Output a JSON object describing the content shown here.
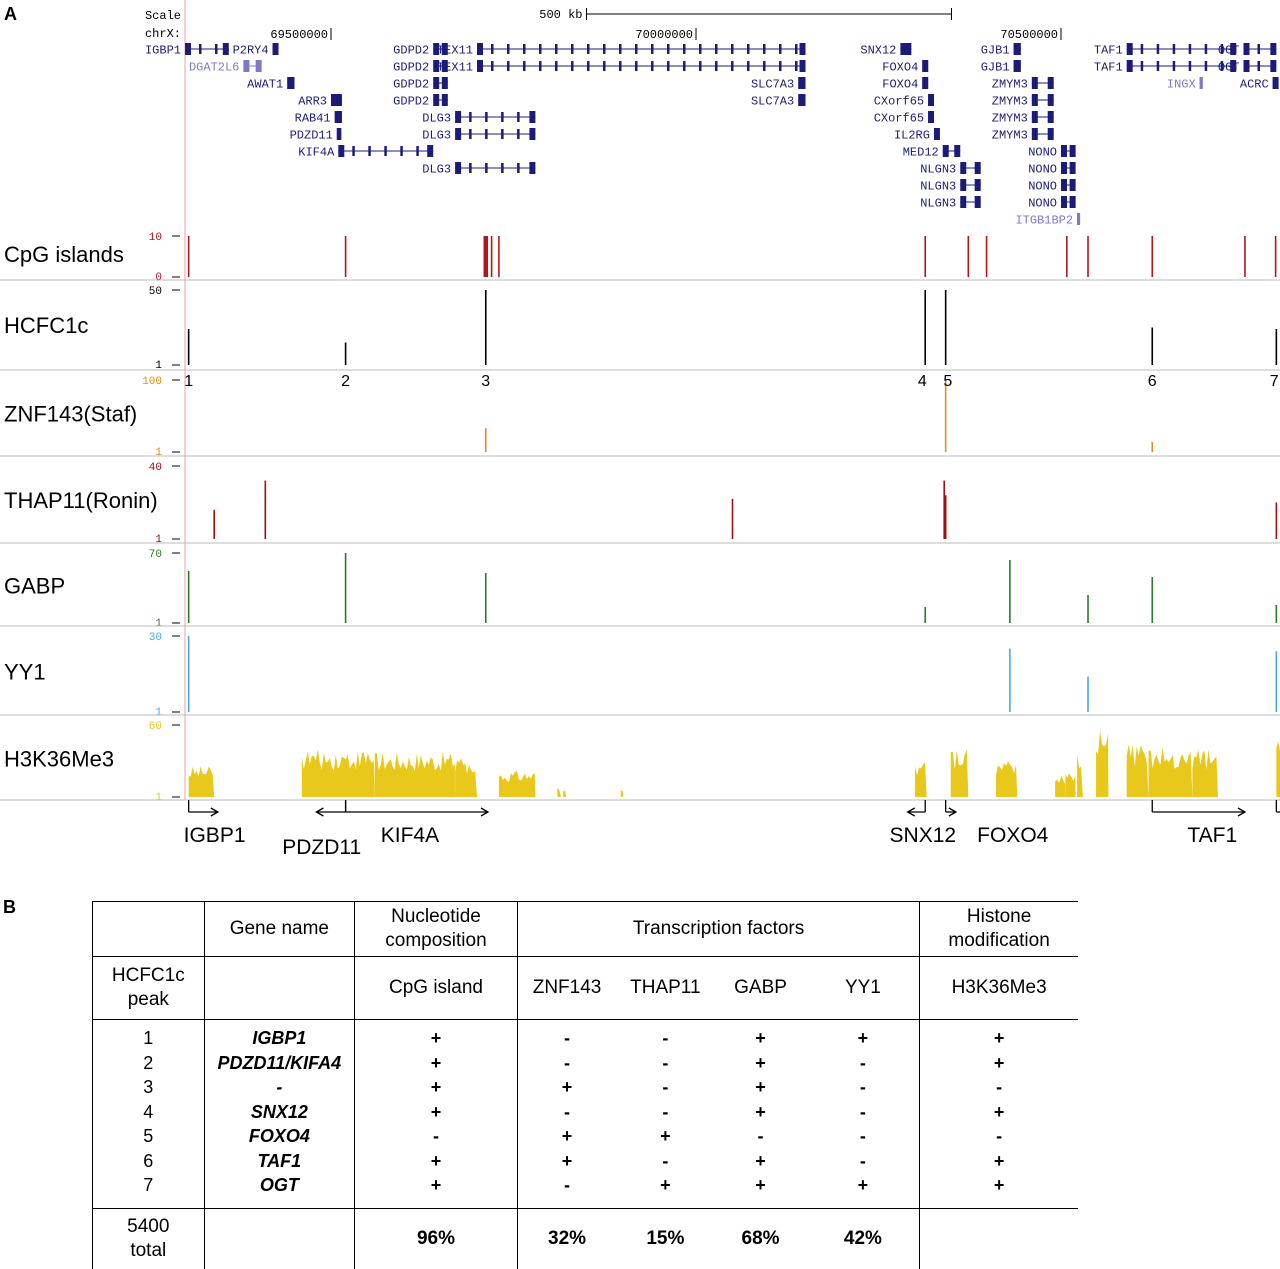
{
  "panel_a_label": "A",
  "panel_b_label": "B",
  "browser": {
    "scale_label": "Scale",
    "scale_value": "500 kb",
    "chrom_label": "chrX:",
    "coords": [
      {
        "value": 69500000,
        "text": "69500000"
      },
      {
        "value": 70000000,
        "text": "70000000"
      },
      {
        "value": 70500000,
        "text": "70500000"
      }
    ],
    "gene_colors": {
      "main": "#1c1c78",
      "light": "#7b7bc8"
    },
    "genes": [
      {
        "name": "IGBP1",
        "row": 0,
        "start": 69300000,
        "end": 69360000,
        "color": "main"
      },
      {
        "name": "P2RY4",
        "row": 0,
        "start": 69420000,
        "end": 69428000,
        "color": "main"
      },
      {
        "name": "GDPD2",
        "row": 0,
        "start": 69640000,
        "end": 69660000,
        "color": "main"
      },
      {
        "name": "TEX11",
        "row": 0,
        "start": 69700000,
        "end": 70150000,
        "color": "main"
      },
      {
        "name": "SNX12",
        "row": 0,
        "start": 70280000,
        "end": 70295000,
        "color": "main"
      },
      {
        "name": "GJB1",
        "row": 0,
        "start": 70435000,
        "end": 70445000,
        "color": "main"
      },
      {
        "name": "TAF1",
        "row": 0,
        "start": 70590000,
        "end": 70740000,
        "color": "main"
      },
      {
        "name": "OGT",
        "row": 0,
        "start": 70750000,
        "end": 70795000,
        "color": "main"
      },
      {
        "name": "DGAT2L6",
        "row": 1,
        "start": 69380000,
        "end": 69405000,
        "color": "light"
      },
      {
        "name": "GDPD2",
        "row": 1,
        "start": 69640000,
        "end": 69660000,
        "color": "main"
      },
      {
        "name": "TEX11",
        "row": 1,
        "start": 69700000,
        "end": 70150000,
        "color": "main"
      },
      {
        "name": "FOXO4",
        "row": 1,
        "start": 70310000,
        "end": 70318000,
        "color": "main"
      },
      {
        "name": "GJB1",
        "row": 1,
        "start": 70435000,
        "end": 70445000,
        "color": "main"
      },
      {
        "name": "TAF1",
        "row": 1,
        "start": 70590000,
        "end": 70740000,
        "color": "main"
      },
      {
        "name": "OGT",
        "row": 1,
        "start": 70750000,
        "end": 70795000,
        "color": "main"
      },
      {
        "name": "AWAT1",
        "row": 2,
        "start": 69440000,
        "end": 69450000,
        "color": "main"
      },
      {
        "name": "GDPD2",
        "row": 2,
        "start": 69640000,
        "end": 69660000,
        "color": "main"
      },
      {
        "name": "SLC7A3",
        "row": 2,
        "start": 70140000,
        "end": 70150000,
        "color": "main"
      },
      {
        "name": "FOXO4",
        "row": 2,
        "start": 70310000,
        "end": 70318000,
        "color": "main"
      },
      {
        "name": "ZMYM3",
        "row": 2,
        "start": 70460000,
        "end": 70490000,
        "color": "main"
      },
      {
        "name": "INGX",
        "row": 2,
        "start": 70690000,
        "end": 70692000,
        "color": "light"
      },
      {
        "name": "ACRC",
        "row": 2,
        "start": 70790000,
        "end": 70798000,
        "color": "main"
      },
      {
        "name": "ARR3",
        "row": 3,
        "start": 69500000,
        "end": 69515000,
        "color": "main"
      },
      {
        "name": "GDPD2",
        "row": 3,
        "start": 69640000,
        "end": 69660000,
        "color": "main"
      },
      {
        "name": "SLC7A3",
        "row": 3,
        "start": 70140000,
        "end": 70150000,
        "color": "main"
      },
      {
        "name": "CXorf65",
        "row": 3,
        "start": 70318000,
        "end": 70326000,
        "color": "main"
      },
      {
        "name": "ZMYM3",
        "row": 3,
        "start": 70460000,
        "end": 70490000,
        "color": "main"
      },
      {
        "name": "RAB41",
        "row": 4,
        "start": 69505000,
        "end": 69515000,
        "color": "main"
      },
      {
        "name": "DLG3",
        "row": 4,
        "start": 69670000,
        "end": 69780000,
        "color": "main"
      },
      {
        "name": "CXorf65",
        "row": 4,
        "start": 70318000,
        "end": 70326000,
        "color": "main"
      },
      {
        "name": "ZMYM3",
        "row": 4,
        "start": 70460000,
        "end": 70490000,
        "color": "main"
      },
      {
        "name": "PDZD11",
        "row": 5,
        "start": 69508000,
        "end": 69514000,
        "color": "main"
      },
      {
        "name": "DLG3",
        "row": 5,
        "start": 69670000,
        "end": 69780000,
        "color": "main"
      },
      {
        "name": "IL2RG",
        "row": 5,
        "start": 70326000,
        "end": 70334000,
        "color": "main"
      },
      {
        "name": "ZMYM3",
        "row": 5,
        "start": 70460000,
        "end": 70490000,
        "color": "main"
      },
      {
        "name": "KIF4A",
        "row": 6,
        "start": 69510000,
        "end": 69640000,
        "color": "main"
      },
      {
        "name": "MED12",
        "row": 6,
        "start": 70338000,
        "end": 70362000,
        "color": "main"
      },
      {
        "name": "NONO",
        "row": 6,
        "start": 70500000,
        "end": 70520000,
        "color": "main"
      },
      {
        "name": "DLG3",
        "row": 7,
        "start": 69670000,
        "end": 69780000,
        "color": "main"
      },
      {
        "name": "NLGN3",
        "row": 7,
        "start": 70362000,
        "end": 70390000,
        "color": "main"
      },
      {
        "name": "NONO",
        "row": 7,
        "start": 70500000,
        "end": 70520000,
        "color": "main"
      },
      {
        "name": "NLGN3",
        "row": 8,
        "start": 70362000,
        "end": 70390000,
        "color": "main"
      },
      {
        "name": "NONO",
        "row": 8,
        "start": 70500000,
        "end": 70520000,
        "color": "main"
      },
      {
        "name": "NLGN3",
        "row": 9,
        "start": 70362000,
        "end": 70390000,
        "color": "main"
      },
      {
        "name": "NONO",
        "row": 9,
        "start": 70500000,
        "end": 70520000,
        "color": "main"
      },
      {
        "name": "ITGB1BP2",
        "row": 10,
        "start": 70522000,
        "end": 70526000,
        "color": "light"
      }
    ]
  },
  "chart_data": {
    "type": "bar",
    "x_range": [
      69300000,
      70800000
    ],
    "tracks": [
      {
        "name": "CpG islands",
        "color": "#b01818",
        "ymax_label": "10",
        "ymin_label": "0",
        "ymax": 10,
        "peaks": [
          [
            69305000,
            10
          ],
          [
            69520000,
            10
          ],
          [
            69710000,
            10
          ],
          [
            69712000,
            10
          ],
          [
            69714000,
            10
          ],
          [
            69720000,
            10
          ],
          [
            69730000,
            10
          ],
          [
            70314000,
            10
          ],
          [
            70373000,
            10
          ],
          [
            70398000,
            10
          ],
          [
            70508000,
            10
          ],
          [
            70537000,
            10
          ],
          [
            70625000,
            10
          ],
          [
            70752000,
            10
          ],
          [
            70794000,
            10
          ],
          [
            70840000,
            10
          ]
        ]
      },
      {
        "name": "HCFC1c",
        "color": "#000000",
        "ymax_label": "50",
        "ymin_label": "1",
        "ymax": 50,
        "peaks": [
          [
            69305000,
            24
          ],
          [
            69520000,
            15
          ],
          [
            69712000,
            50
          ],
          [
            70314000,
            50
          ],
          [
            70342000,
            50
          ],
          [
            70625000,
            25
          ],
          [
            70795000,
            24
          ]
        ]
      },
      {
        "name": "ZNF143(Staf)",
        "color": "#d9901c",
        "ymax_label": "100",
        "ymin_label": "1",
        "ymax": 100,
        "peaks": [
          [
            69712000,
            33
          ],
          [
            70342000,
            100
          ],
          [
            70625000,
            14
          ]
        ]
      },
      {
        "name": "THAP11(Ronin)",
        "color": "#a01010",
        "ymax_label": "40",
        "ymin_label": "1",
        "ymax": 40,
        "peaks": [
          [
            69340000,
            16
          ],
          [
            69410000,
            32
          ],
          [
            70050000,
            22
          ],
          [
            70340000,
            32
          ],
          [
            70342000,
            24
          ],
          [
            70795000,
            20
          ],
          [
            70830000,
            18
          ],
          [
            70835000,
            24
          ]
        ]
      },
      {
        "name": "GABP",
        "color": "#2a7a2a",
        "ymax_label": "70",
        "ymin_label": "1",
        "ymax": 70,
        "peaks": [
          [
            69305000,
            52
          ],
          [
            69520000,
            70
          ],
          [
            69712000,
            50
          ],
          [
            70314000,
            16
          ],
          [
            70430000,
            63
          ],
          [
            70537000,
            28
          ],
          [
            70625000,
            46
          ],
          [
            70795000,
            18
          ]
        ]
      },
      {
        "name": "YY1",
        "color": "#4aa8e0",
        "ymax_label": "30",
        "ymin_label": "1",
        "ymax": 30,
        "peaks": [
          [
            69305000,
            30
          ],
          [
            70430000,
            25
          ],
          [
            70537000,
            14
          ],
          [
            70795000,
            24
          ]
        ]
      },
      {
        "name": "H3K36Me3",
        "color": "#e8c81a",
        "ymax_label": "60",
        "ymin_label": "1",
        "ymax": 60,
        "regions": [
          [
            69305000,
            69340000,
            26
          ],
          [
            69460000,
            69560000,
            40
          ],
          [
            69560000,
            69670000,
            38
          ],
          [
            69670000,
            69700000,
            34
          ],
          [
            69730000,
            69780000,
            22
          ],
          [
            69810000,
            69815000,
            8
          ],
          [
            69818000,
            69822000,
            8
          ],
          [
            69897000,
            69900000,
            8
          ],
          [
            70300000,
            70316000,
            32
          ],
          [
            70349000,
            70373000,
            40
          ],
          [
            70411000,
            70440000,
            30
          ],
          [
            70492000,
            70506000,
            18
          ],
          [
            70506000,
            70520000,
            22
          ],
          [
            70522000,
            70530000,
            36
          ],
          [
            70548000,
            70565000,
            58
          ],
          [
            70590000,
            70620000,
            44
          ],
          [
            70620000,
            70680000,
            42
          ],
          [
            70680000,
            70715000,
            40
          ],
          [
            70795000,
            70840000,
            58
          ]
        ]
      }
    ],
    "peak_numbers": [
      {
        "label": "1",
        "x": 69305000
      },
      {
        "label": "2",
        "x": 69520000
      },
      {
        "label": "3",
        "x": 69712000
      },
      {
        "label": "4",
        "x": 70310000
      },
      {
        "label": "5",
        "x": 70345000
      },
      {
        "label": "6",
        "x": 70625000
      },
      {
        "label": "7",
        "x": 70792000
      }
    ],
    "bottom_genes": [
      {
        "label": "IGBP1",
        "from": 69305000,
        "to": 69345000,
        "dir": "right",
        "label_x": 69305000,
        "row": 0
      },
      {
        "label": "PDZD11",
        "from": 69480000,
        "to": 69520000,
        "dir": "left",
        "label_x": 69440000,
        "row": 1
      },
      {
        "label": "KIF4A",
        "from": 69520000,
        "to": 69715000,
        "dir": "right",
        "label_x": 69575000,
        "row": 0
      },
      {
        "label": "SNX12",
        "from": 70290000,
        "to": 70314000,
        "dir": "left",
        "label_x": 70272000,
        "row": 0
      },
      {
        "label": "FOXO4",
        "from": 70342000,
        "to": 70356000,
        "dir": "right",
        "label_x": 70392000,
        "row": 0
      },
      {
        "label": "TAF1",
        "from": 70625000,
        "to": 70752000,
        "dir": "right",
        "label_x": 70680000,
        "row": 0
      },
      {
        "label": "OGT",
        "from": 70795000,
        "to": 70840000,
        "dir": "right",
        "label_x": 70835000,
        "row": 0
      }
    ]
  },
  "table": {
    "header1": [
      "",
      "Gene name",
      "Nucleotide composition",
      "Transcription factors",
      "Histone modification"
    ],
    "header2": [
      "HCFC1c peak",
      "",
      "CpG island",
      "ZNF143",
      "THAP11",
      "GABP",
      "YY1",
      "H3K36Me3"
    ],
    "rows": [
      [
        "1",
        "IGBP1",
        "+",
        "-",
        "-",
        "+",
        "+",
        "+"
      ],
      [
        "2",
        "PDZD11/KIFA4",
        "+",
        "-",
        "-",
        "+",
        "-",
        "+"
      ],
      [
        "3",
        "-",
        "+",
        "+",
        "-",
        "+",
        "-",
        "-"
      ],
      [
        "4",
        "SNX12",
        "+",
        "-",
        "-",
        "+",
        "-",
        "+"
      ],
      [
        "5",
        "FOXO4",
        "-",
        "+",
        "+",
        "-",
        "-",
        "-"
      ],
      [
        "6",
        "TAF1",
        "+",
        "+",
        "-",
        "+",
        "-",
        "+"
      ],
      [
        "7",
        "OGT",
        "+",
        "-",
        "+",
        "+",
        "+",
        "+"
      ]
    ],
    "total": [
      "5400 total",
      "",
      "96%",
      "32%",
      "15%",
      "68%",
      "42%",
      ""
    ]
  }
}
